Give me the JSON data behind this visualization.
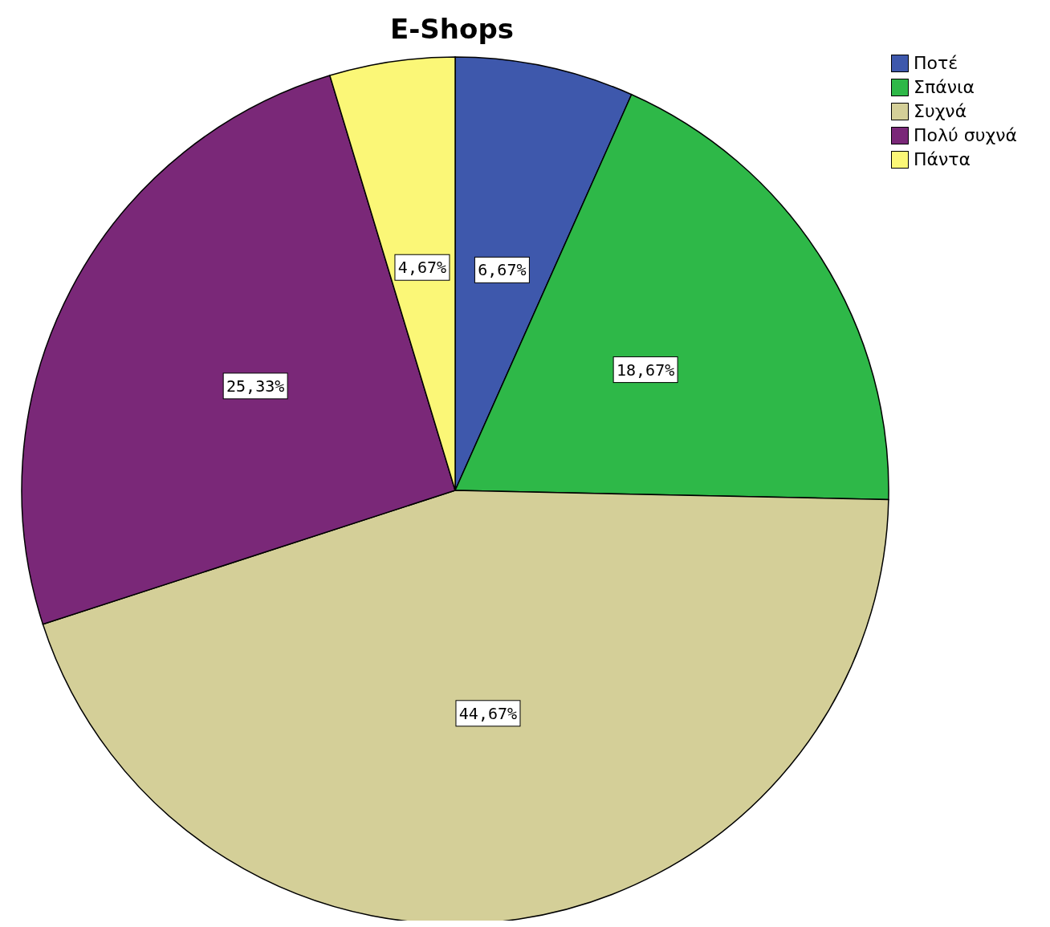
{
  "chart_data": {
    "type": "pie",
    "title": "E-Shops",
    "categories": [
      "Ποτέ",
      "Σπάνια",
      "Συχνά",
      "Πολύ συχνά",
      "Πάντα"
    ],
    "values": [
      6.67,
      18.67,
      44.67,
      25.33,
      4.67
    ],
    "colors": [
      "#3e58ac",
      "#2eb848",
      "#d4cf98",
      "#7a2878",
      "#fbf777"
    ],
    "value_labels": [
      "6,67%",
      "18,67%",
      "44,67%",
      "25,33%",
      "4,67%"
    ],
    "legend": "top right"
  }
}
